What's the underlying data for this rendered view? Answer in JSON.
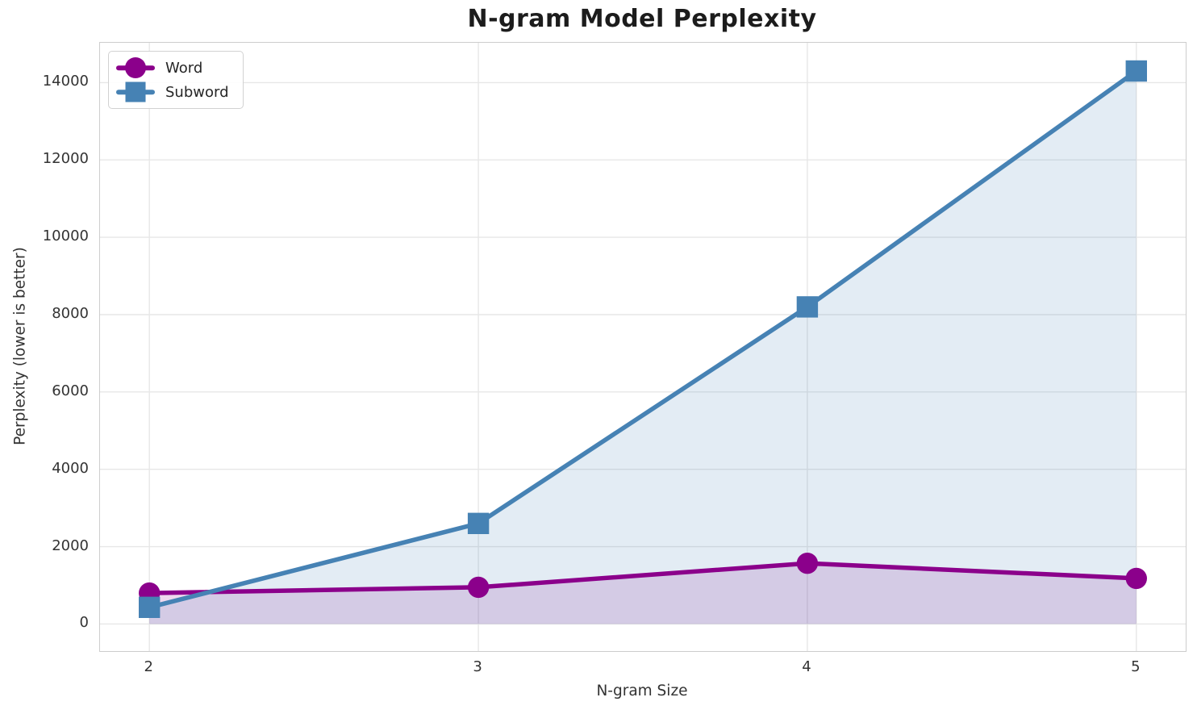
{
  "chart_data": {
    "type": "line",
    "title": "N-gram Model Perplexity",
    "xlabel": "N-gram Size",
    "ylabel": "Perplexity (lower is better)",
    "x": [
      2,
      3,
      4,
      5
    ],
    "series": [
      {
        "name": "Word",
        "values": [
          800,
          950,
          1570,
          1180
        ],
        "color": "#8B008B",
        "marker": "circle"
      },
      {
        "name": "Subword",
        "values": [
          430,
          2600,
          8200,
          14300
        ],
        "color": "#4682B4",
        "marker": "square"
      }
    ],
    "xticks": [
      2,
      3,
      4,
      5
    ],
    "yticks": [
      0,
      2000,
      4000,
      6000,
      8000,
      10000,
      12000,
      14000
    ],
    "xlim": [
      1.85,
      5.15
    ],
    "ylim": [
      -700,
      15030
    ],
    "grid": true,
    "legend_position": "upper left",
    "fill_alpha": 0.15,
    "fill_baseline": 0,
    "gridline_color": "#e7e7e7",
    "spine_color": "#cdcdcd"
  }
}
